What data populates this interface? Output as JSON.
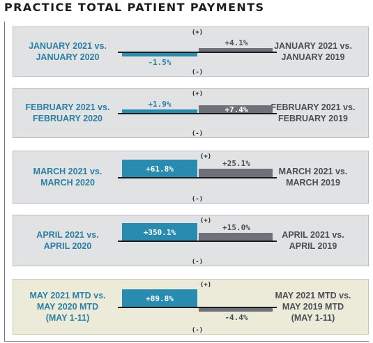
{
  "title": "PRACTICE TOTAL PATIENT PAYMENTS",
  "colors": {
    "current_bar": "#2a8bb0",
    "prior_bar": "#6e7179",
    "axis": "#1a1a1a",
    "left_label": "#2b7fa3",
    "right_label": "#4a4e55",
    "panel_bg": "#e1e2e4",
    "highlight_bg": "#ecebda"
  },
  "chart_data": {
    "type": "bar",
    "title": "PRACTICE TOTAL PATIENT PAYMENTS",
    "units": "%",
    "positive_marker": "(+)",
    "negative_marker": "(-)",
    "series": [
      {
        "name": "vs. 2020",
        "values": [
          -1.5,
          1.9,
          61.8,
          350.1,
          89.8
        ]
      },
      {
        "name": "vs. 2019",
        "values": [
          4.1,
          7.4,
          25.1,
          15.0,
          -4.4
        ]
      }
    ],
    "panels": [
      {
        "left_label": [
          "JANUARY 2021 vs.",
          "JANUARY 2020"
        ],
        "right_label": [
          "JANUARY 2021 vs.",
          "JANUARY 2019"
        ],
        "current_text": "-1.5%",
        "prior_text": "+4.1%",
        "highlight": false
      },
      {
        "left_label": [
          "FEBRUARY 2021 vs.",
          "FEBRUARY 2020"
        ],
        "right_label": [
          "FEBRUARY 2021 vs.",
          "FEBRUARY 2019"
        ],
        "current_text": "+1.9%",
        "prior_text": "+7.4%",
        "highlight": false
      },
      {
        "left_label": [
          "MARCH 2021 vs.",
          "MARCH 2020"
        ],
        "right_label": [
          "MARCH 2021 vs.",
          "MARCH 2019"
        ],
        "current_text": "+61.8%",
        "prior_text": "+25.1%",
        "highlight": false
      },
      {
        "left_label": [
          "APRIL 2021 vs.",
          "APRIL 2020"
        ],
        "right_label": [
          "APRIL 2021 vs.",
          "APRIL 2019"
        ],
        "current_text": "+350.1%",
        "prior_text": "+15.0%",
        "highlight": false
      },
      {
        "left_label": [
          "MAY 2021 MTD vs.",
          "MAY 2020 MTD",
          "(MAY 1-11)"
        ],
        "right_label": [
          "MAY 2021 MTD vs.",
          "MAY 2019 MTD",
          "(MAY 1-11)"
        ],
        "current_text": "+89.8%",
        "prior_text": "-4.4%",
        "highlight": true
      }
    ]
  }
}
